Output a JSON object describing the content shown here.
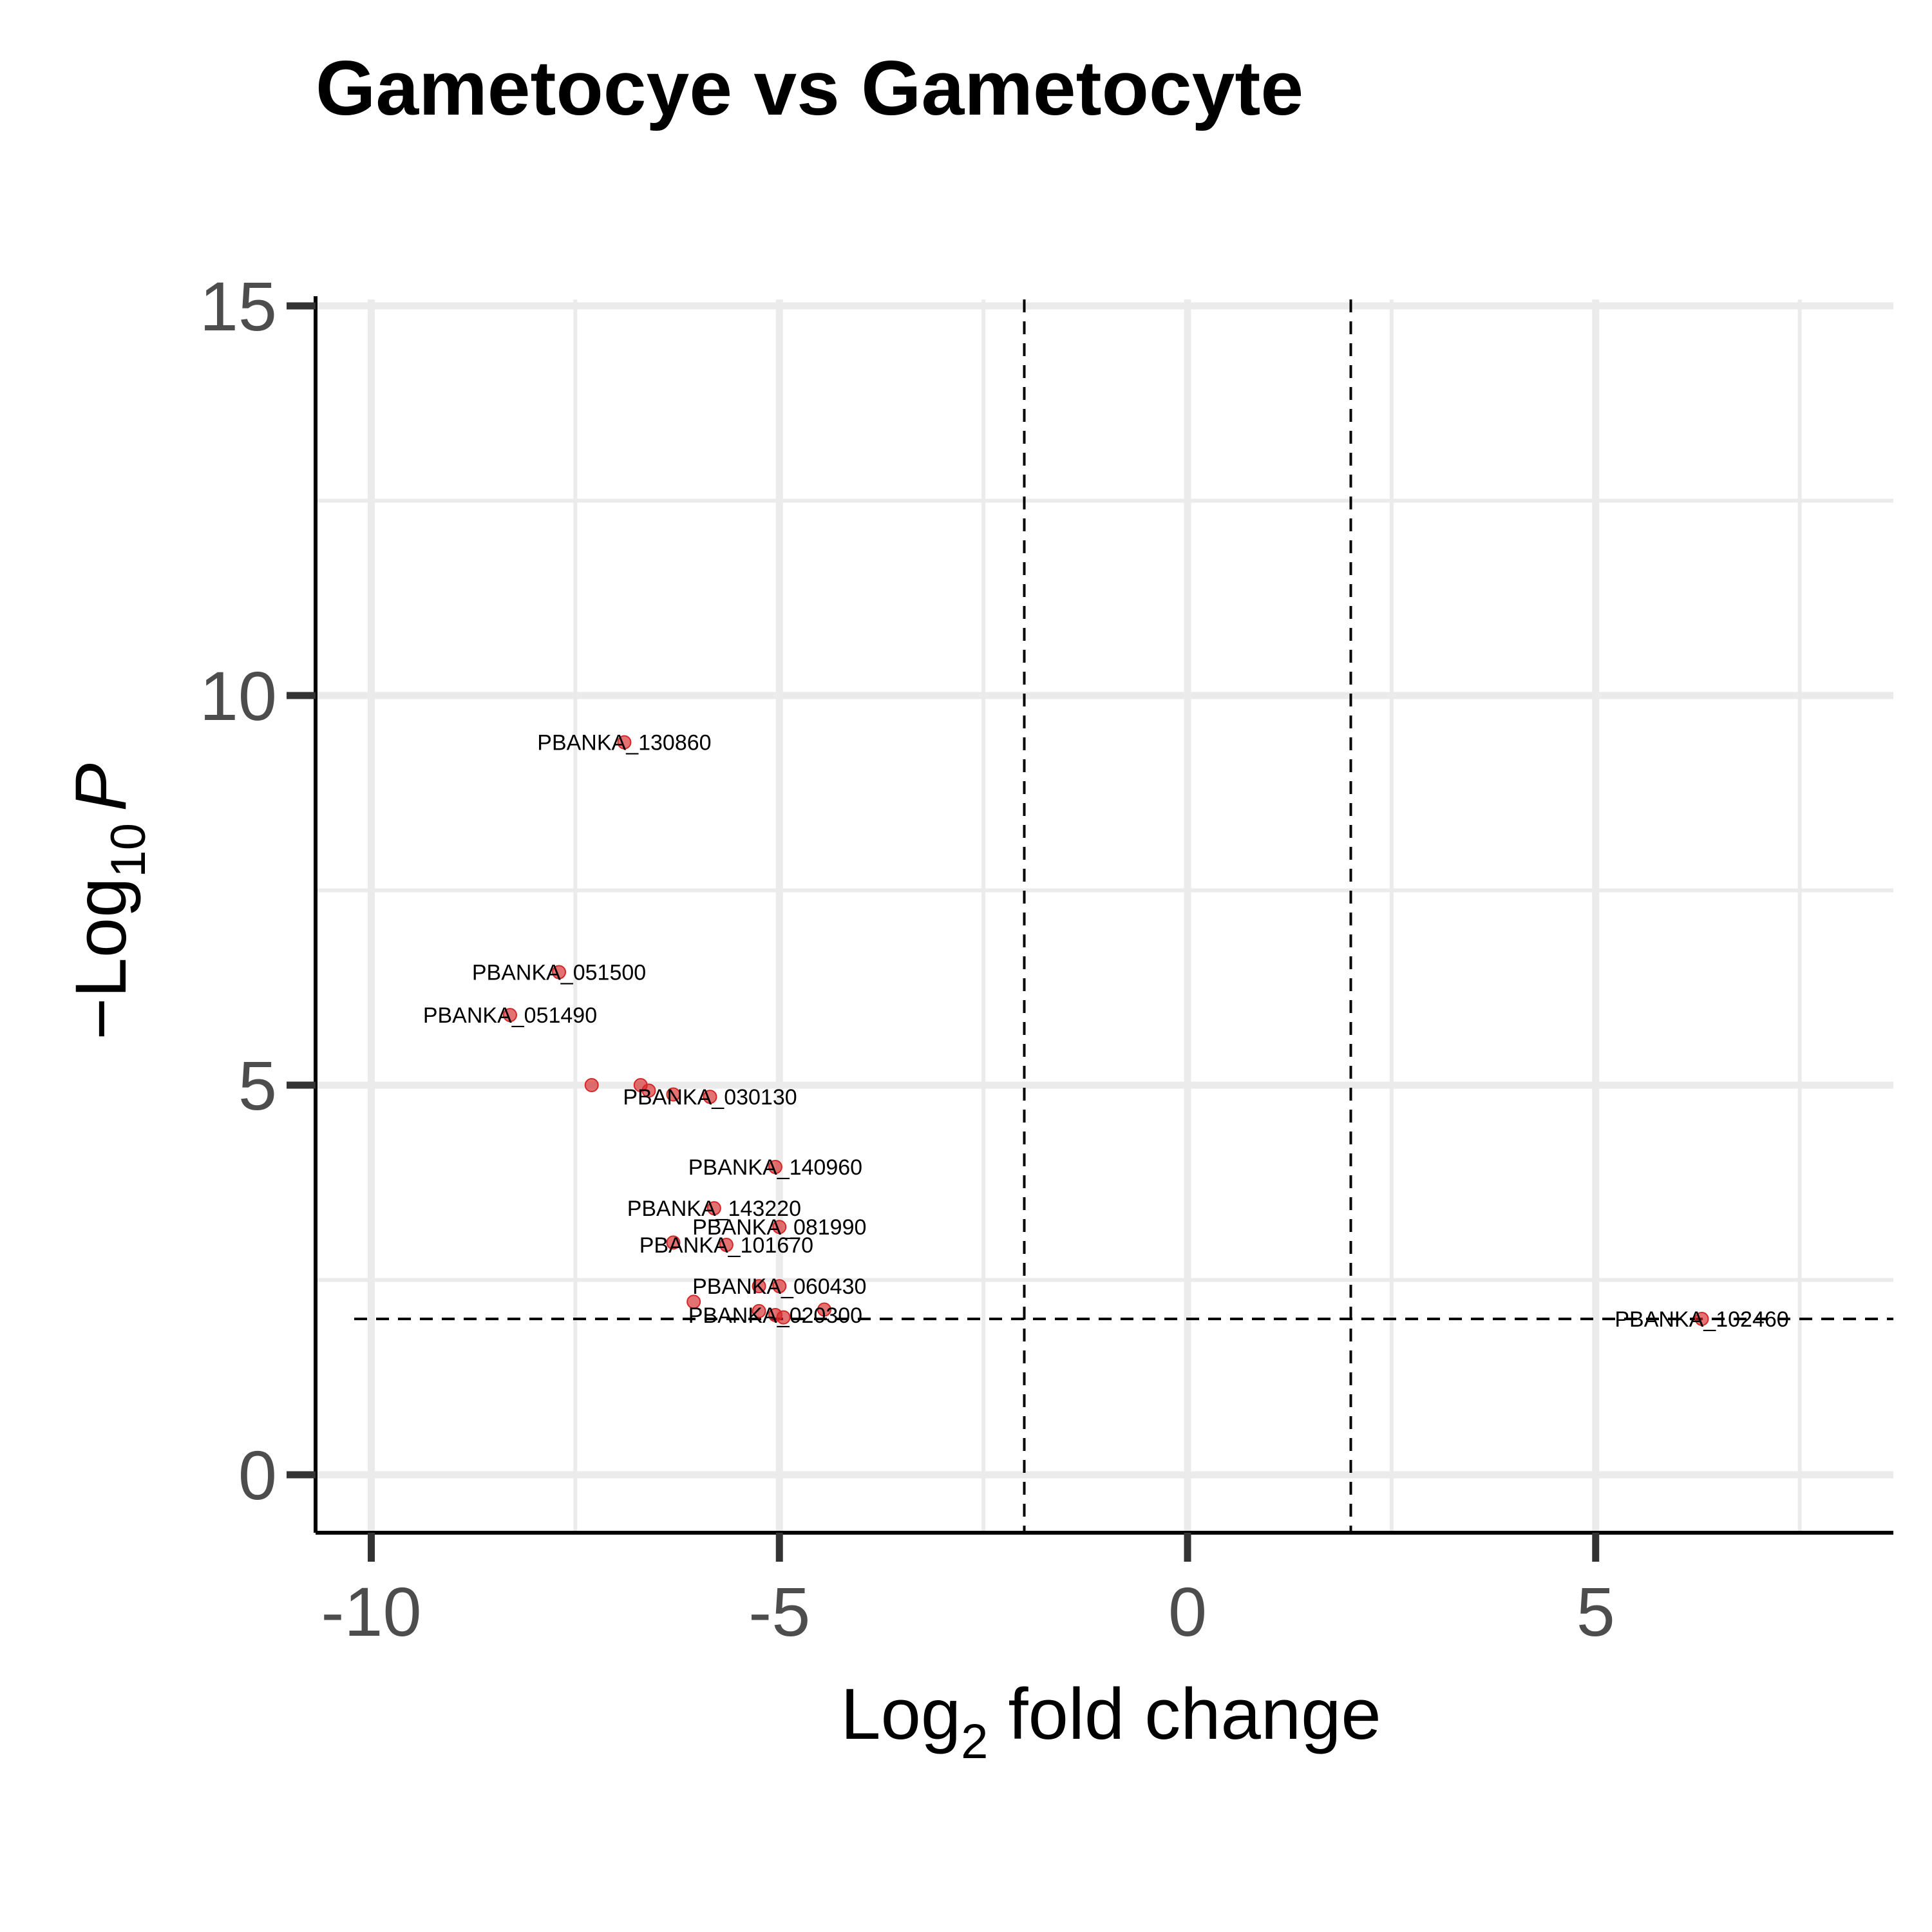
{
  "chart_data": {
    "type": "scatter",
    "title": "Gametocye vs Gametocyte",
    "xlabel": {
      "main": "Log",
      "sub": "2",
      "rest": " fold change"
    },
    "ylabel": {
      "prefix": "−Log",
      "sub": "10",
      "italic": "P"
    },
    "xlim": [
      -10.7,
      8.6
    ],
    "ylim": [
      -1.4,
      15
    ],
    "x_ticks": [
      -10,
      -5,
      0,
      5
    ],
    "x_tick_labels": [
      "-10",
      "-5",
      "0",
      "5"
    ],
    "y_ticks": [
      0,
      5,
      10,
      15
    ],
    "y_tick_labels": [
      "0",
      "5",
      "10",
      "15"
    ],
    "x_minor_ticks": [
      -7.5,
      -2.5,
      2.5,
      7.5
    ],
    "y_minor_ticks": [
      2.5,
      7.5,
      12.5
    ],
    "grid": true,
    "cutoffs": {
      "fc": [
        -2,
        2
      ],
      "p": 2
    },
    "point_color": "#d62728",
    "points": [
      {
        "x": -6.9,
        "y": 9.4,
        "label": "PBANKA_130860"
      },
      {
        "x": -7.7,
        "y": 6.45,
        "label": "PBANKA_051500"
      },
      {
        "x": -8.3,
        "y": 5.9,
        "label": "PBANKA_051490"
      },
      {
        "x": -7.3,
        "y": 5.0,
        "label": ""
      },
      {
        "x": -6.7,
        "y": 5.0,
        "label": ""
      },
      {
        "x": -6.6,
        "y": 4.93,
        "label": ""
      },
      {
        "x": -6.3,
        "y": 4.88,
        "label": ""
      },
      {
        "x": -5.85,
        "y": 4.85,
        "label": "PBANKA_030130"
      },
      {
        "x": -5.05,
        "y": 3.95,
        "label": "PBANKA_140960"
      },
      {
        "x": -5.8,
        "y": 3.42,
        "label": "PBANKA_143220"
      },
      {
        "x": -5.0,
        "y": 3.18,
        "label": "PBANKA_081990"
      },
      {
        "x": -6.3,
        "y": 2.98,
        "label": ""
      },
      {
        "x": -5.65,
        "y": 2.95,
        "label": "PBANKA_101670"
      },
      {
        "x": -5.25,
        "y": 2.42,
        "label": ""
      },
      {
        "x": -5.0,
        "y": 2.42,
        "label": "PBANKA_060430"
      },
      {
        "x": -6.05,
        "y": 2.22,
        "label": ""
      },
      {
        "x": -4.45,
        "y": 2.12,
        "label": ""
      },
      {
        "x": -5.25,
        "y": 2.1,
        "label": ""
      },
      {
        "x": -5.05,
        "y": 2.05,
        "label": "PBANKA_020300"
      },
      {
        "x": -4.95,
        "y": 2.02,
        "label": ""
      },
      {
        "x": 6.3,
        "y": 2.0,
        "label": "PBANKA_102460"
      }
    ]
  }
}
